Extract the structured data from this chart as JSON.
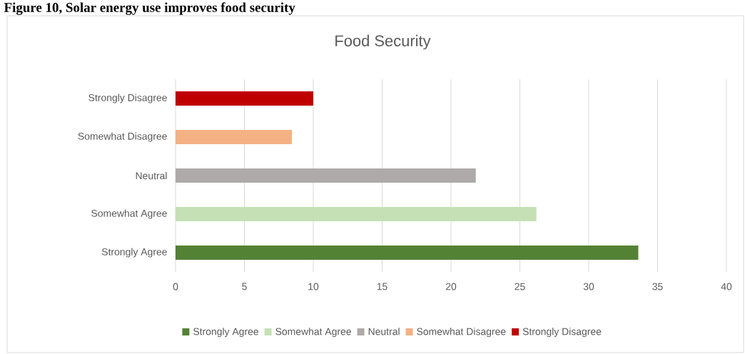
{
  "chart_data": {
    "type": "bar",
    "orientation": "horizontal",
    "title": "Food Security",
    "annotations": [
      "Figure 10, Solar energy use improves food security"
    ],
    "categories": [
      "Strongly Disagree",
      "Somewhat Disagree",
      "Neutral",
      "Somewhat Agree",
      "Strongly Agree"
    ],
    "series": [
      {
        "name": "Strongly Agree",
        "color": "#548235",
        "values": [
          null,
          null,
          null,
          null,
          33.6
        ]
      },
      {
        "name": "Somewhat Agree",
        "color": "#c5e0b4",
        "values": [
          null,
          null,
          null,
          26.2,
          null
        ]
      },
      {
        "name": "Neutral",
        "color": "#aeaaaa",
        "values": [
          null,
          null,
          21.8,
          null,
          null
        ]
      },
      {
        "name": "Somewhat Disagree",
        "color": "#f4b183",
        "values": [
          null,
          8.45,
          null,
          null,
          null
        ]
      },
      {
        "name": "Strongly Disagree",
        "color": "#c00000",
        "values": [
          10.0,
          null,
          null,
          null,
          null
        ]
      }
    ],
    "xlim": [
      0,
      40
    ],
    "xticks": [
      0,
      5,
      10,
      15,
      20,
      25,
      30,
      35,
      40
    ],
    "grid": "x",
    "legend": "bottom"
  }
}
